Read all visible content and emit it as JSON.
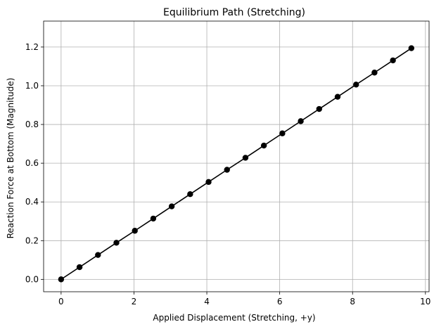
{
  "chart_data": {
    "type": "line",
    "title": "Equilibrium Path (Stretching)",
    "xlabel": "Applied Displacement (Stretching, +y)",
    "ylabel": "Reaction Force at Bottom (Magnitude)",
    "xlim": [
      -0.48,
      10.1
    ],
    "ylim": [
      -0.064,
      1.334
    ],
    "xticks": [
      0,
      2,
      4,
      6,
      8,
      10
    ],
    "xtick_labels": [
      "0",
      "2",
      "4",
      "6",
      "8",
      "10"
    ],
    "yticks": [
      0.0,
      0.2,
      0.4,
      0.6,
      0.8,
      1.0,
      1.2
    ],
    "ytick_labels": [
      "0.0",
      "0.2",
      "0.4",
      "0.6",
      "0.8",
      "1.0",
      "1.2"
    ],
    "grid": true,
    "legend": "none",
    "colors": {
      "line": "#000000",
      "marker": "#000000",
      "grid": "#b0b0b0"
    },
    "series": [
      {
        "marker": "circle",
        "x": [
          0.0,
          0.506,
          1.012,
          1.518,
          2.024,
          2.53,
          3.036,
          3.542,
          4.048,
          4.554,
          5.06,
          5.566,
          6.072,
          6.578,
          7.084,
          7.59,
          8.096,
          8.602,
          9.108,
          9.614
        ],
        "y": [
          0.0,
          0.063,
          0.126,
          0.189,
          0.251,
          0.314,
          0.377,
          0.44,
          0.503,
          0.566,
          0.628,
          0.691,
          0.754,
          0.817,
          0.88,
          0.943,
          1.006,
          1.068,
          1.131,
          1.194
        ]
      }
    ]
  }
}
